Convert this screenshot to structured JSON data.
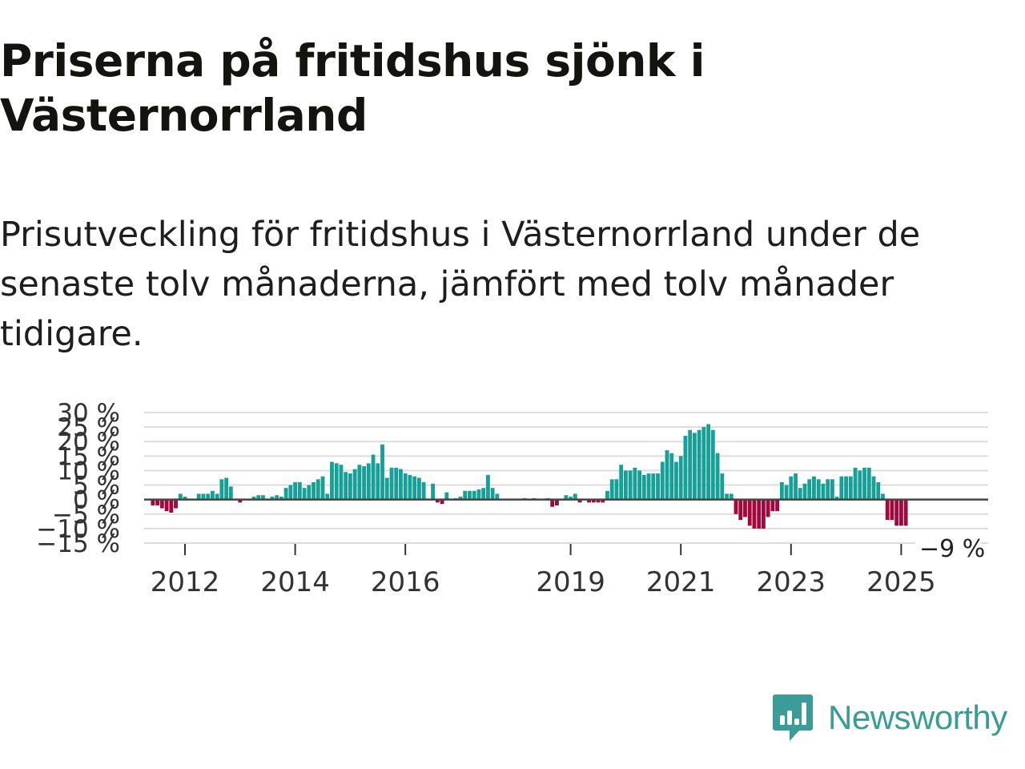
{
  "title": "Priserna på fritidshus sjönk i Västernorrland",
  "subtitle": "Prisutveckling för fritidshus i Västernorrland under de senaste tolv månaderna, jämfört med tolv månader tidigare.",
  "brand": {
    "name": "Newsworthy",
    "color": "#3a9c96",
    "icon": "newsworthy-logo-icon"
  },
  "colors": {
    "positive": "#16a097",
    "negative": "#a3073c",
    "zero_line": "#444444",
    "grid": "#dddddd",
    "text": "#333333"
  },
  "chart_data": {
    "type": "bar",
    "title": "",
    "xlabel": "",
    "ylabel": "",
    "ylim": [
      -15,
      30
    ],
    "y_ticks": [
      30,
      25,
      20,
      15,
      10,
      5,
      0,
      -5,
      -10,
      -15
    ],
    "y_tick_labels": [
      "30 %",
      "25 %",
      "20 %",
      "15 %",
      "10 %",
      "5 %",
      "0 %",
      "−5 %",
      "−10 %",
      "−15 %"
    ],
    "x_ticks": [
      2012,
      2014,
      2016,
      2019,
      2021,
      2023,
      2025
    ],
    "x_tick_labels": [
      "2012",
      "2014",
      "2016",
      "2019",
      "2021",
      "2023",
      "2025"
    ],
    "x_start_year": 2011.4167,
    "bar_step_months": 1,
    "last_value_label": "−9 %",
    "values": [
      -2,
      -2,
      -3,
      -4,
      -4.5,
      -3,
      2,
      1,
      0,
      0,
      2,
      2,
      2,
      3,
      2,
      7,
      7.5,
      4.5,
      0,
      -1,
      0,
      0,
      1,
      1.5,
      1.5,
      0,
      1,
      1.5,
      1,
      4,
      5,
      6,
      6,
      4,
      5,
      6,
      7,
      8,
      2,
      13,
      12.5,
      12,
      9.5,
      9,
      10.5,
      12,
      11.5,
      12.5,
      15.5,
      12.5,
      19,
      7.5,
      11,
      11,
      10.5,
      9,
      8.5,
      8,
      7.5,
      6,
      0,
      5.5,
      -1,
      -1.5,
      2.5,
      0,
      0.5,
      1,
      3,
      3,
      3,
      3.5,
      4,
      8.5,
      4,
      2,
      0,
      0,
      0,
      0,
      0,
      0.5,
      0,
      0.5,
      0,
      0,
      0.5,
      -2.5,
      -2,
      0,
      1.5,
      1,
      2,
      -1,
      0,
      -1,
      -1,
      -1,
      -1,
      3,
      7,
      7,
      12,
      10,
      10,
      11,
      10,
      8.5,
      9,
      9,
      9,
      13,
      17,
      16,
      13,
      15,
      22,
      24,
      23,
      24,
      25,
      26,
      24,
      16,
      9,
      2,
      2,
      -5,
      -7,
      -6,
      -9,
      -10,
      -10,
      -10,
      -6,
      -4,
      -4,
      6,
      5,
      8,
      9,
      4,
      5.5,
      7,
      8,
      7,
      5.5,
      7,
      7,
      1,
      8,
      8,
      8,
      11,
      10,
      11,
      11,
      8,
      6,
      2,
      -7,
      -7,
      -9,
      -9,
      -9
    ]
  }
}
